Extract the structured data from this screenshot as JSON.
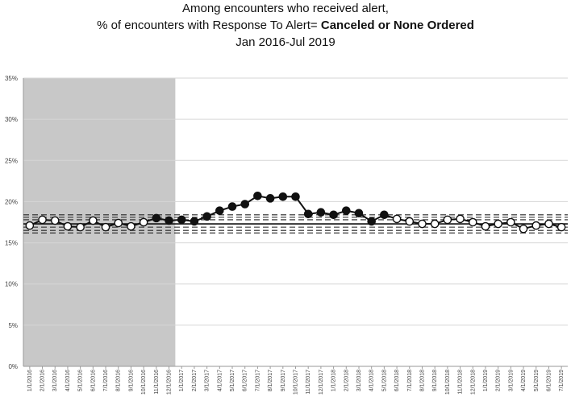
{
  "title": {
    "line1": "Among encounters who received alert,",
    "line2_prefix": "% of encounters with Response To Alert= ",
    "line2_bold": "Canceled or None Ordered",
    "line3": "Jan 2016-Jul 2019"
  },
  "chart_data": {
    "type": "line",
    "ylim": [
      0,
      35
    ],
    "yticks": [
      "0%",
      "5%",
      "10%",
      "15%",
      "20%",
      "25%",
      "30%",
      "35%"
    ],
    "ytick_values": [
      0,
      5,
      10,
      15,
      20,
      25,
      30,
      35
    ],
    "grid": "horizontal",
    "shaded_region": {
      "from": "1/1/2016",
      "to": "12/1/2016",
      "color": "#c8c8c8"
    },
    "categories": [
      "1/1/2016",
      "2/1/2016",
      "3/1/2016",
      "4/1/2016",
      "5/1/2016",
      "6/1/2016",
      "7/1/2016",
      "8/1/2016",
      "9/1/2016",
      "10/1/2016",
      "11/1/2016",
      "12/1/2016",
      "1/1/2017",
      "2/1/2017",
      "3/1/2017",
      "4/1/2017",
      "5/1/2017",
      "6/1/2017",
      "7/1/2017",
      "8/1/2017",
      "9/1/2017",
      "10/1/2017",
      "11/1/2017",
      "12/1/2017",
      "1/1/2018",
      "2/1/2018",
      "3/1/2018",
      "4/1/2018",
      "5/1/2018",
      "6/1/2018",
      "7/1/2018",
      "8/1/2018",
      "9/1/2018",
      "10/1/2018",
      "11/1/2018",
      "12/1/2018",
      "1/1/2019",
      "2/1/2019",
      "3/1/2019",
      "4/1/2019",
      "5/1/2019",
      "6/1/2019",
      "7/1/2019"
    ],
    "values": [
      17.1,
      17.8,
      17.7,
      17.0,
      16.9,
      17.7,
      16.9,
      17.4,
      17.0,
      17.5,
      18.0,
      17.7,
      17.8,
      17.6,
      18.2,
      18.9,
      19.4,
      19.7,
      20.7,
      20.4,
      20.6,
      20.6,
      18.5,
      18.7,
      18.4,
      18.9,
      18.6,
      17.6,
      18.4,
      17.9,
      17.6,
      17.3,
      17.3,
      17.8,
      17.9,
      17.5,
      17.0,
      17.3,
      17.5,
      16.7,
      17.1,
      17.3,
      16.9
    ],
    "filled": [
      false,
      false,
      false,
      false,
      false,
      false,
      false,
      false,
      false,
      false,
      true,
      true,
      true,
      true,
      true,
      true,
      true,
      true,
      true,
      true,
      true,
      true,
      true,
      true,
      true,
      true,
      true,
      true,
      true,
      false,
      false,
      false,
      false,
      false,
      false,
      false,
      false,
      false,
      false,
      false,
      false,
      false,
      false
    ],
    "center_line": 17.3,
    "control_limits": [
      16.2,
      16.5,
      16.9,
      17.8,
      18.1,
      18.4
    ]
  }
}
